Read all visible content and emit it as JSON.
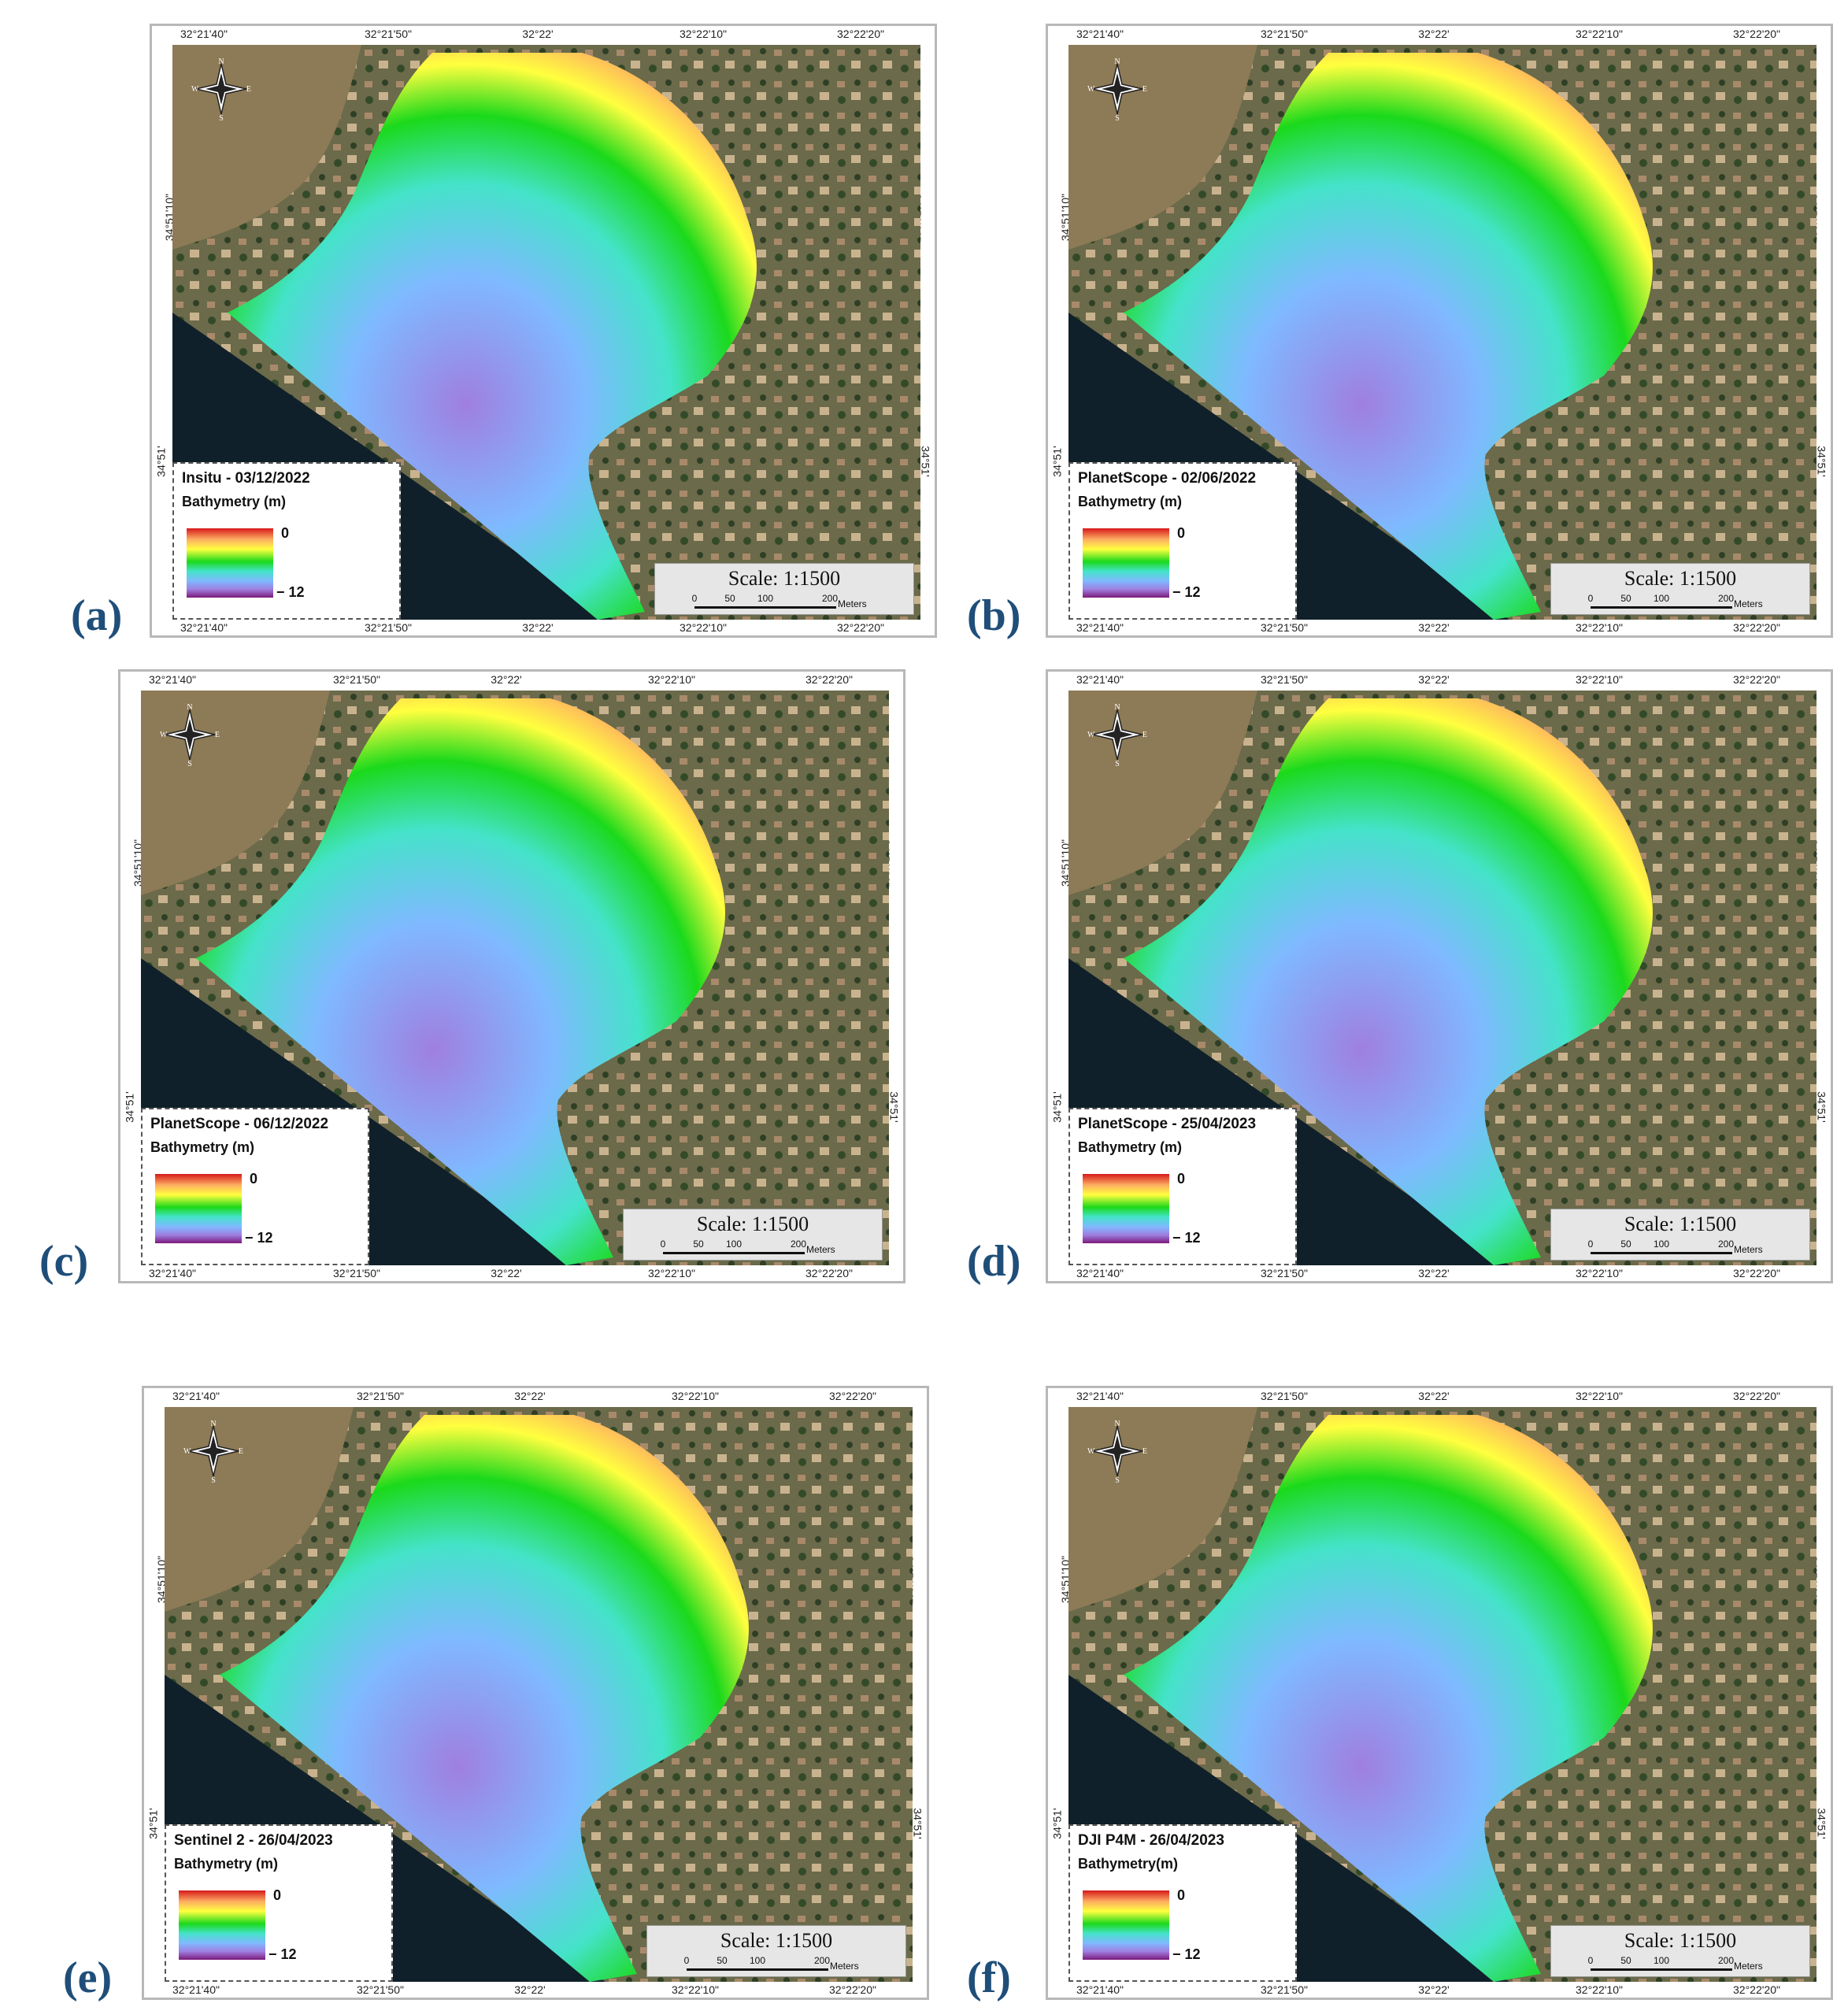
{
  "panels": [
    {
      "letter": "(a)",
      "legend_title": "Insitu - 03/12/2022",
      "legend_sub": "Bathymetry (m)"
    },
    {
      "letter": "(b)",
      "legend_title": "PlanetScope -  02/06/2022",
      "legend_sub": "Bathymetry (m)"
    },
    {
      "letter": "(c)",
      "legend_title": "PlanetScope - 06/12/2022",
      "legend_sub": "Bathymetry (m)"
    },
    {
      "letter": "(d)",
      "legend_title": "PlanetScope - 25/04/2023",
      "legend_sub": "Bathymetry (m)"
    },
    {
      "letter": "(e)",
      "legend_title": "Sentinel 2 - 26/04/2023",
      "legend_sub": "Bathymetry (m)"
    },
    {
      "letter": "(f)",
      "legend_title": "DJI P4M - 26/04/2023",
      "legend_sub": "Bathymetry(m)"
    }
  ],
  "legend": {
    "max": "0",
    "min": "− 12"
  },
  "scale": {
    "text": "Scale: 1:1500",
    "ticks": [
      "0",
      "50",
      "100",
      "200"
    ],
    "unit": "Meters"
  },
  "axes": {
    "x": [
      "32°21'40\"",
      "32°21'50\"",
      "32°22'",
      "32°22'10\"",
      "32°22'20\""
    ],
    "y": [
      "34°51'10\"",
      "34°51'"
    ]
  },
  "compass": {
    "n": "N",
    "s": "S",
    "e": "E",
    "w": "W"
  },
  "colors": {
    "shallow": "#d7191c",
    "mid": "#1bd91b",
    "deep": "#7b1a7b",
    "label": "#1f4e79"
  }
}
